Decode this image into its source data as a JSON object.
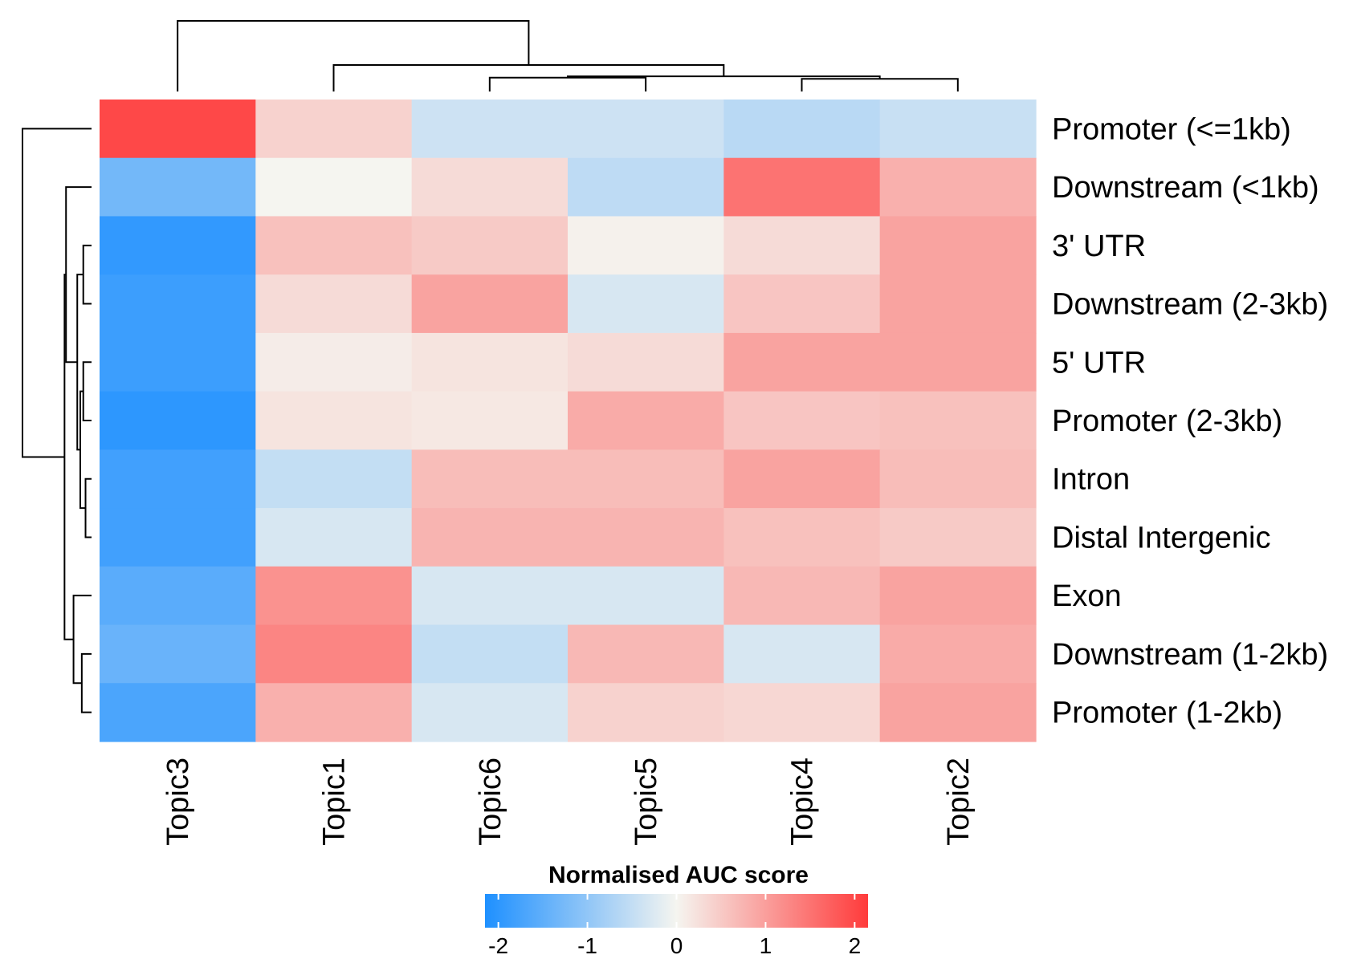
{
  "chart_data": {
    "type": "heatmap",
    "title": "",
    "legend": {
      "title": "Normalised AUC score",
      "ticks": [
        "-2",
        "-1",
        "0",
        "1",
        "2"
      ],
      "tick_values": [
        -2,
        -1,
        0,
        1,
        2
      ],
      "range": [
        -2.15,
        2.15
      ],
      "placement": "bottom",
      "colors": {
        "low": "#1E90FF",
        "mid": "#F5F5F0",
        "high": "#FF3B3B"
      }
    },
    "columns": [
      "Topic3",
      "Topic1",
      "Topic6",
      "Topic5",
      "Topic4",
      "Topic2"
    ],
    "rows": [
      "Promoter (<=1kb)",
      "Downstream (<1kb)",
      "3' UTR",
      "Downstream (2-3kb)",
      "5' UTR",
      "Promoter (2-3kb)",
      "Intron",
      "Distal Intergenic",
      "Exon",
      "Downstream (1-2kb)",
      "Promoter (1-2kb)"
    ],
    "values": [
      [
        2.0,
        0.4,
        -0.4,
        -0.4,
        -0.6,
        -0.45
      ],
      [
        -1.3,
        0.0,
        0.3,
        -0.55,
        1.5,
        0.8
      ],
      [
        -1.95,
        0.6,
        0.5,
        0.05,
        0.3,
        0.95
      ],
      [
        -1.85,
        0.3,
        0.95,
        -0.3,
        0.55,
        0.95
      ],
      [
        -1.85,
        0.1,
        0.2,
        0.3,
        0.95,
        0.95
      ],
      [
        -2.0,
        0.2,
        0.15,
        0.85,
        0.55,
        0.6
      ],
      [
        -1.8,
        -0.5,
        0.65,
        0.65,
        0.95,
        0.65
      ],
      [
        -1.8,
        -0.3,
        0.75,
        0.75,
        0.6,
        0.5
      ],
      [
        -1.55,
        1.15,
        -0.3,
        -0.3,
        0.7,
        0.95
      ],
      [
        -1.4,
        1.3,
        -0.5,
        0.7,
        -0.3,
        0.85
      ],
      [
        -1.7,
        0.8,
        -0.3,
        0.4,
        0.35,
        0.95
      ]
    ],
    "column_dendrogram": [
      {
        "left": 4,
        "right": 5,
        "height": 1.0
      },
      {
        "left": 2,
        "right": 3,
        "height": 1.1
      },
      {
        "left": 7,
        "right": 6,
        "height": 1.2
      },
      {
        "left": 1,
        "right": 8,
        "height": 2.1
      },
      {
        "left": 0,
        "right": 9,
        "height": 5.6
      }
    ],
    "row_dendrogram": [
      {
        "left": 6,
        "right": 7,
        "height": 0.4
      },
      {
        "left": 4,
        "right": 5,
        "height": 0.55
      },
      {
        "left": 2,
        "right": 3,
        "height": 0.55
      },
      {
        "left": 9,
        "right": 10,
        "height": 0.65
      },
      {
        "left": 11,
        "right": 12,
        "height": 0.75
      },
      {
        "left": 13,
        "right": 15,
        "height": 0.95
      },
      {
        "left": 8,
        "right": 14,
        "height": 1.2
      },
      {
        "left": 1,
        "right": 16,
        "height": 1.7
      },
      {
        "left": 17,
        "right": 18,
        "height": 1.8
      },
      {
        "left": 0,
        "right": 19,
        "height": 4.6
      }
    ]
  }
}
